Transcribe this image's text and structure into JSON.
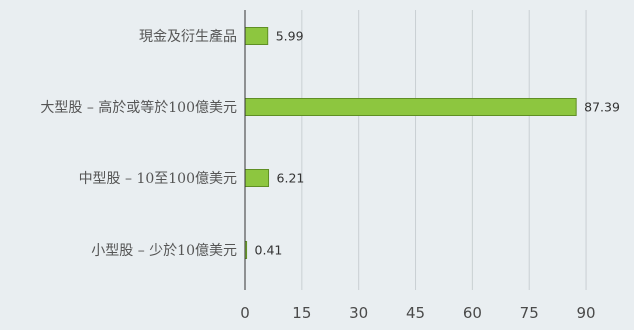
{
  "chart_data": {
    "type": "bar",
    "orientation": "horizontal",
    "categories": [
      "現金及衍生產品",
      "大型股 – 高於或等於100億美元",
      "中型股 – 10至100億美元",
      "小型股 – 少於10億美元"
    ],
    "series": [
      {
        "values": [
          5.99,
          87.39,
          6.21,
          0.41
        ]
      }
    ],
    "data_labels": [
      "5.99",
      "87.39",
      "6.21",
      "0.41"
    ],
    "xlim": [
      0,
      95
    ],
    "xticks": [
      0,
      15,
      30,
      45,
      60,
      75,
      90
    ],
    "xtick_labels": [
      "0",
      "15",
      "30",
      "45",
      "60",
      "75",
      "90"
    ],
    "grid": "vertical",
    "legend": "none",
    "colors": {
      "bar_fill": "#8dc63f",
      "bar_stroke": "#5f8f24",
      "background": "#e9eef1",
      "gridline": "#c9cfd3"
    }
  }
}
